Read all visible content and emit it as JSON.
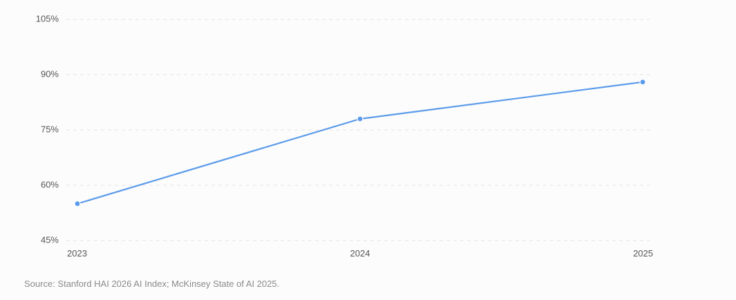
{
  "chart_data": {
    "type": "line",
    "title": "",
    "xlabel": "",
    "ylabel": "",
    "x": [
      "2023",
      "2024",
      "2025"
    ],
    "series": [
      {
        "values": [
          55,
          78,
          88
        ],
        "color": "#5b9bea"
      }
    ],
    "ylim": [
      45,
      105
    ],
    "yticks": [
      45,
      60,
      75,
      90,
      105
    ],
    "ytick_labels": [
      "45%",
      "60%",
      "75%",
      "90%",
      "105%"
    ],
    "grid": true,
    "legend": "none"
  },
  "source": "Source: Stanford HAI 2026 AI Index; McKinsey State of AI 2025."
}
